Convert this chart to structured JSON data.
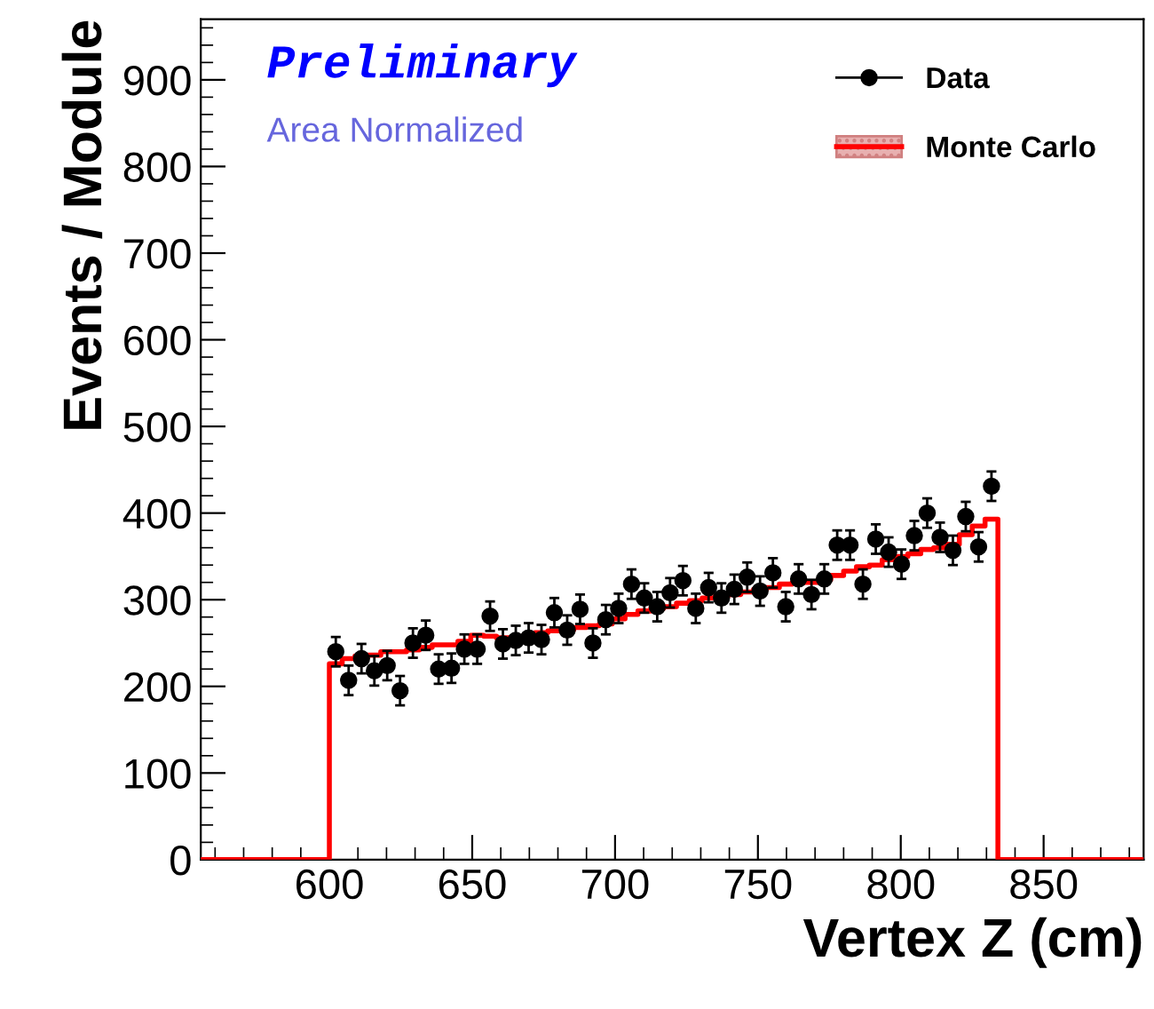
{
  "chart_data": {
    "type": "scatter",
    "xlabel": "Vertex Z (cm)",
    "ylabel": "Events / Module",
    "annotations": [
      "Preliminary",
      "Area Normalized"
    ],
    "xlim": [
      555,
      885
    ],
    "xticks": [
      600,
      650,
      700,
      750,
      800,
      850
    ],
    "ylim": [
      0,
      970
    ],
    "yticks": [
      0,
      100,
      200,
      300,
      400,
      500,
      600,
      700,
      800,
      900
    ],
    "grid": false,
    "legend": "top right",
    "series": [
      {
        "name": "Data",
        "marker": "circle",
        "color": "#000000",
        "x": [
          602.25,
          606.75,
          611.25,
          615.75,
          620.25,
          624.75,
          629.25,
          633.75,
          638.25,
          642.75,
          647.25,
          651.75,
          656.25,
          660.75,
          665.25,
          669.75,
          674.25,
          678.75,
          683.25,
          687.75,
          692.25,
          696.75,
          701.25,
          705.75,
          710.25,
          714.75,
          719.25,
          723.75,
          728.25,
          732.75,
          737.25,
          741.75,
          746.25,
          750.75,
          755.25,
          759.75,
          764.25,
          768.75,
          773.25,
          777.75,
          782.25,
          786.75,
          791.25,
          795.75,
          800.25,
          804.75,
          809.25,
          813.75,
          818.25,
          822.75,
          827.25,
          831.75
        ],
        "values": [
          240,
          207,
          232,
          218,
          224,
          195,
          250,
          259,
          220,
          221,
          243,
          243,
          281,
          249,
          253,
          256,
          254,
          285,
          265,
          289,
          250,
          277,
          290,
          318,
          302,
          292,
          308,
          322,
          290,
          314,
          302,
          312,
          326,
          310,
          331,
          292,
          324,
          306,
          324,
          363,
          363,
          318,
          370,
          355,
          341,
          374,
          400,
          372,
          357,
          396,
          361,
          431
        ],
        "errors": [
          17,
          17,
          17,
          17,
          17,
          17,
          17,
          17,
          17,
          17,
          17,
          17,
          17,
          17,
          17,
          17,
          17,
          17,
          17,
          17,
          17,
          17,
          17,
          17,
          17,
          17,
          17,
          17,
          17,
          17,
          17,
          17,
          17,
          17,
          17,
          17,
          17,
          17,
          17,
          17,
          17,
          17,
          17,
          17,
          17,
          17,
          17,
          17,
          17,
          17,
          17,
          17
        ]
      },
      {
        "name": "Monte Carlo",
        "type": "step",
        "color": "#ff0000",
        "x": [
          555,
          600,
          604.5,
          609,
          613.5,
          618,
          622.5,
          627,
          631.5,
          636,
          640.5,
          645,
          649.5,
          654,
          658.5,
          663,
          667.5,
          672,
          676.5,
          681,
          685.5,
          690,
          694.5,
          699,
          703.5,
          708,
          712.5,
          717,
          721.5,
          726,
          730.5,
          735,
          739.5,
          744,
          748.5,
          753,
          757.5,
          762,
          766.5,
          771,
          775.5,
          780,
          784.5,
          789,
          793.5,
          798,
          802.5,
          807,
          811.5,
          816,
          820.5,
          825,
          829.5,
          834,
          885
        ],
        "values": [
          0,
          226,
          232,
          235,
          236,
          240,
          240,
          242,
          245,
          248,
          248,
          252,
          259,
          258,
          256,
          255,
          258,
          262,
          264,
          265,
          268,
          270,
          272,
          278,
          283,
          287,
          290,
          292,
          296,
          299,
          302,
          304,
          306,
          309,
          312,
          314,
          318,
          320,
          320,
          323,
          328,
          333,
          338,
          340,
          346,
          350,
          353,
          358,
          360,
          364,
          375,
          385,
          393,
          0,
          0
        ]
      }
    ]
  }
}
